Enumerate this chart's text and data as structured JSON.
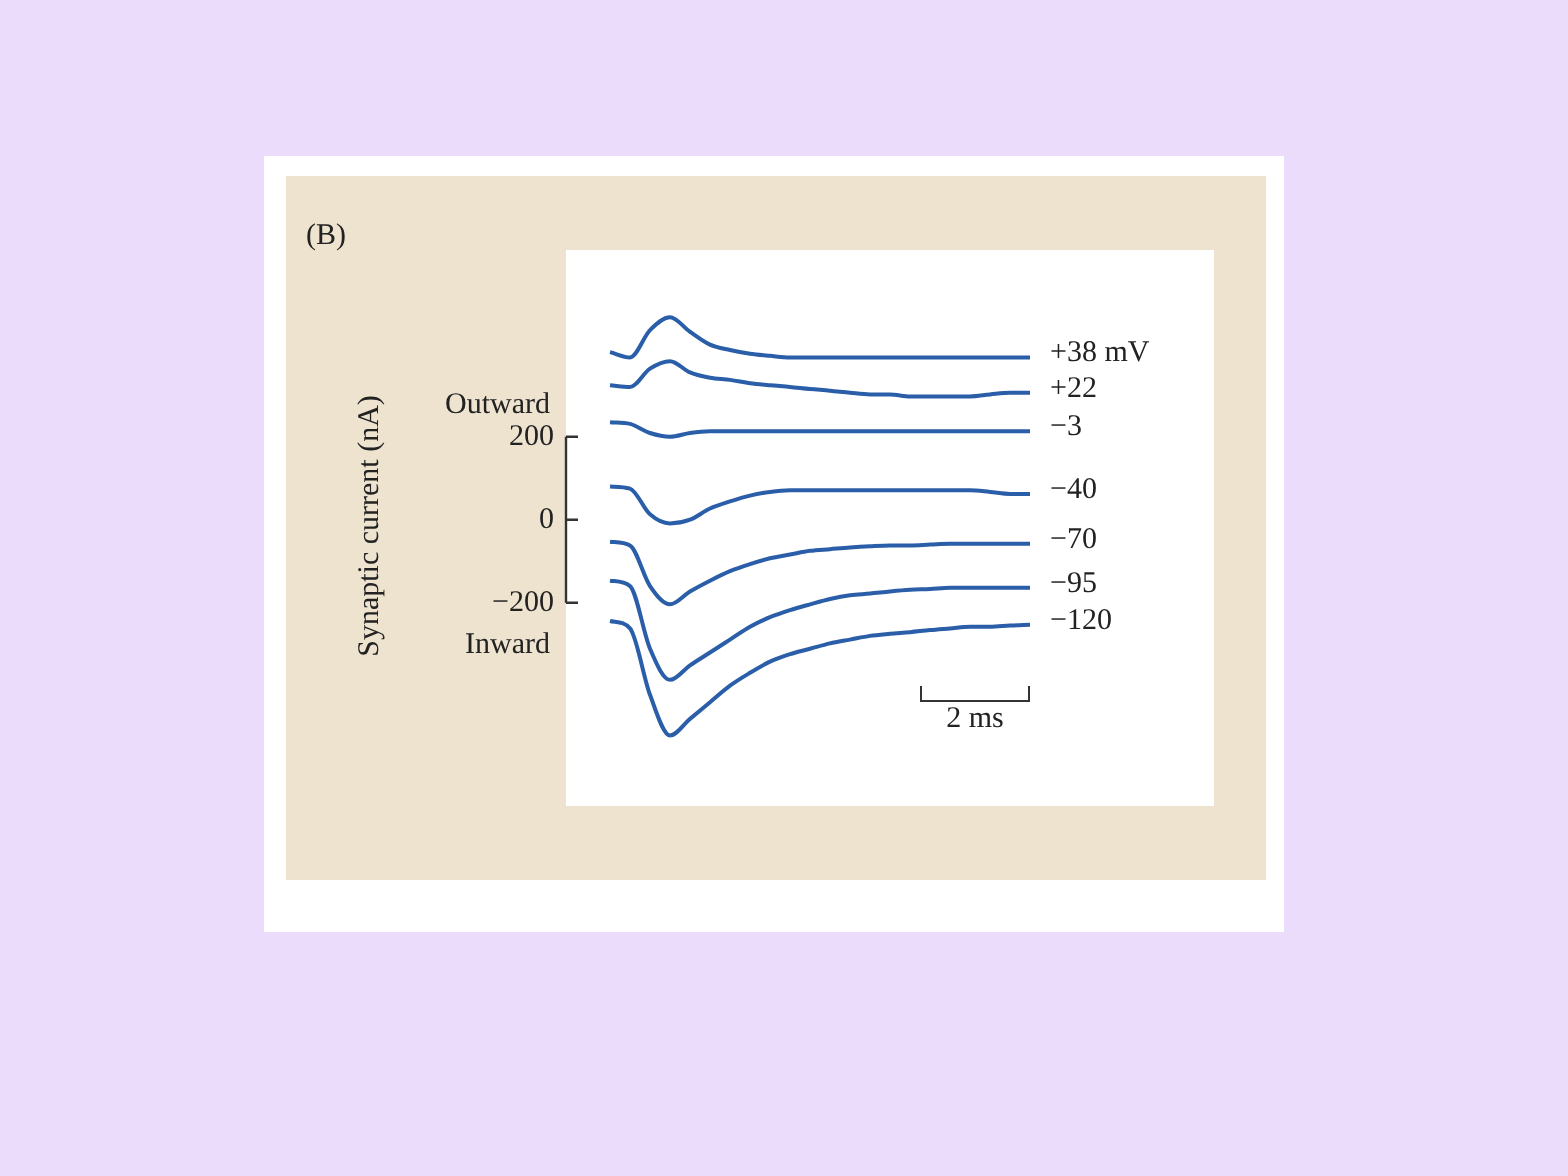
{
  "chart_data": {
    "type": "line",
    "title": "(B)",
    "ylabel": "Synaptic current (nA)",
    "annotations": [
      "Outward",
      "Inward",
      "2 ms"
    ],
    "categories": [
      null,
      null,
      null,
      null,
      null,
      null,
      null,
      null,
      null,
      null,
      null,
      null,
      null,
      null,
      null,
      null,
      null,
      null,
      null,
      null,
      null,
      null
    ],
    "ylim": [
      -690,
      650
    ],
    "yticks": [
      200,
      0,
      {
        "value": -200,
        "label": "−200"
      }
    ],
    "grid": false,
    "legend": false,
    "marker": "none",
    "line_style": "solid",
    "tick_labels": "y",
    "series": [
      {
        "name": "+38 mV",
        "color": "#2a5ea8",
        "values": [
          404,
          391,
          457,
          488,
          453,
          422,
          409,
          400,
          395,
          391,
          391,
          391,
          391,
          391,
          391,
          391,
          391,
          391,
          391,
          391,
          391,
          391
        ]
      },
      {
        "name": "+22",
        "color": "#2a5ea8",
        "values": [
          324,
          320,
          364,
          382,
          355,
          342,
          337,
          329,
          324,
          320,
          315,
          311,
          306,
          302,
          302,
          297,
          297,
          297,
          297,
          302,
          306,
          306
        ]
      },
      {
        "name": "−3",
        "color": "#2a5ea8",
        "values": [
          235,
          231,
          209,
          200,
          209,
          213,
          213,
          213,
          213,
          213,
          213,
          213,
          213,
          213,
          213,
          213,
          213,
          213,
          213,
          213,
          213,
          213
        ]
      },
      {
        "name": "−40",
        "color": "#2a5ea8",
        "values": [
          80,
          75,
          13,
          -9,
          0,
          27,
          44,
          58,
          67,
          71,
          71,
          71,
          71,
          71,
          71,
          71,
          71,
          71,
          71,
          67,
          62,
          62
        ]
      },
      {
        "name": "−70",
        "color": "#2a5ea8",
        "values": [
          -53,
          -62,
          -160,
          -204,
          -173,
          -147,
          -124,
          -107,
          -93,
          -84,
          -75,
          -71,
          -67,
          -64,
          -62,
          -62,
          -60,
          -58,
          -58,
          -58,
          -58,
          -58
        ]
      },
      {
        "name": "−95",
        "color": "#2a5ea8",
        "values": [
          -147,
          -160,
          -311,
          -386,
          -351,
          -320,
          -289,
          -258,
          -235,
          -218,
          -204,
          -191,
          -182,
          -178,
          -173,
          -169,
          -167,
          -164,
          -164,
          -164,
          -164,
          -164
        ]
      },
      {
        "name": "−120",
        "color": "#2a5ea8",
        "values": [
          -244,
          -262,
          -422,
          -520,
          -480,
          -440,
          -400,
          -369,
          -342,
          -324,
          -311,
          -298,
          -289,
          -280,
          -275,
          -271,
          -266,
          -262,
          -258,
          -258,
          -255,
          -253
        ]
      }
    ]
  }
}
